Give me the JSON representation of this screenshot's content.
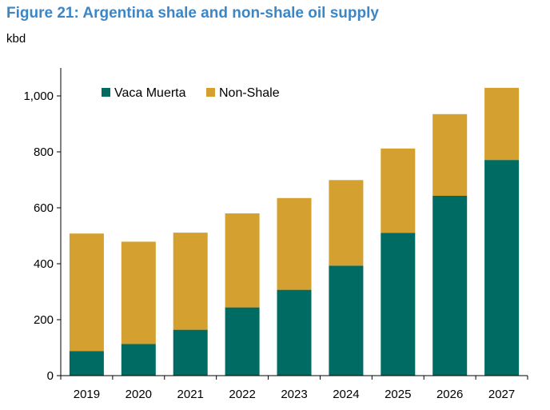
{
  "chart_data": {
    "type": "bar",
    "stacked": true,
    "title": "Figure 21: Argentina shale and non-shale oil supply",
    "ylabel": "kbd",
    "xlabel": "",
    "ylim": [
      0,
      1100
    ],
    "yticks": [
      0,
      200,
      400,
      600,
      800,
      1000
    ],
    "ytick_labels": [
      "0",
      "200",
      "400",
      "600",
      "800",
      "1,000"
    ],
    "categories": [
      "2019",
      "2020",
      "2021",
      "2022",
      "2023",
      "2024",
      "2025",
      "2026",
      "2027"
    ],
    "series": [
      {
        "name": "Vaca Muerta",
        "color": "#006b63",
        "values": [
          88,
          113,
          164,
          244,
          307,
          393,
          510,
          643,
          771
        ]
      },
      {
        "name": "Non-Shale",
        "color": "#d4a02f",
        "values": [
          420,
          366,
          347,
          336,
          328,
          306,
          302,
          292,
          258
        ]
      }
    ],
    "legend_position": "top-left",
    "grid": false
  }
}
